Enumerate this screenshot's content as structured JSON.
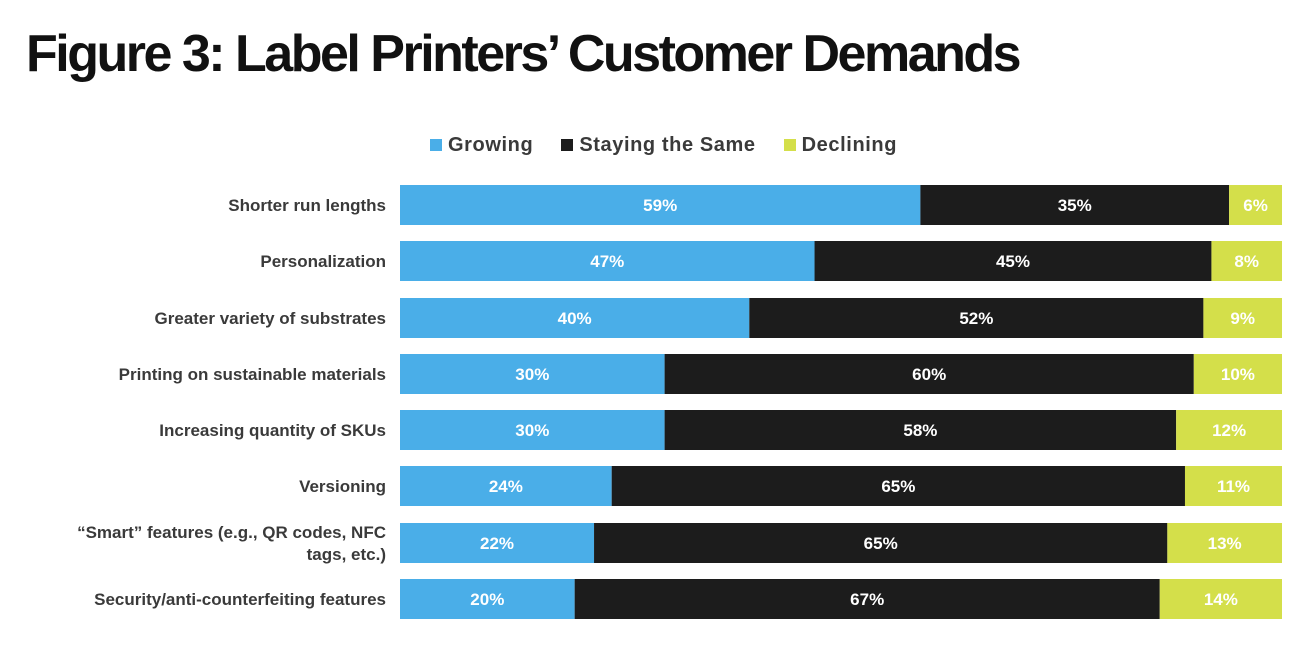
{
  "title": "Figure 3: Label Printers’ Customer Demands",
  "colors": {
    "growing": "#4aaee8",
    "staying": "#1c1c1c",
    "declining": "#d4df4a"
  },
  "chart_data": {
    "type": "bar",
    "orientation": "horizontal",
    "stacked": true,
    "title": "Figure 3: Label Printers’ Customer Demands",
    "legend_position": "top",
    "grid": false,
    "xlim": [
      0,
      100
    ],
    "categories": [
      "Shorter run lengths",
      "Personalization",
      "Greater variety of substrates",
      "Printing on sustainable materials",
      "Increasing quantity of SKUs",
      "Versioning",
      "“Smart” features (e.g., QR codes, NFC tags, etc.)",
      "Security/anti-counterfeiting  features"
    ],
    "series": [
      {
        "name": "Growing",
        "color": "#4aaee8",
        "values": [
          59,
          47,
          40,
          30,
          30,
          24,
          22,
          20
        ]
      },
      {
        "name": "Staying the Same",
        "color": "#1c1c1c",
        "values": [
          35,
          45,
          52,
          60,
          58,
          65,
          65,
          67
        ]
      },
      {
        "name": "Declining",
        "color": "#d4df4a",
        "values": [
          6,
          8,
          9,
          10,
          12,
          11,
          13,
          14
        ]
      }
    ]
  }
}
